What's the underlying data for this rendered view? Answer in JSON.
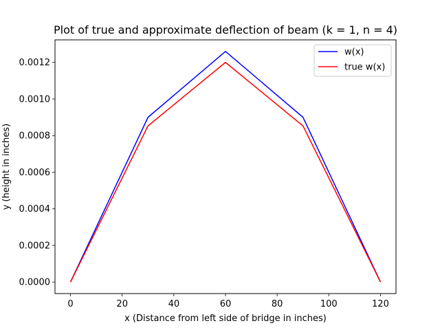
{
  "chart_data": {
    "type": "line",
    "title": "Plot of true and approximate deflection of beam (k = 1, n = 4)",
    "xlabel": "x (Distance from left side of bridge in inches)",
    "ylabel": "y (height in inches)",
    "xlim": [
      -6,
      126
    ],
    "ylim": [
      -6.3e-05,
      0.001323
    ],
    "xticks": [
      0,
      20,
      40,
      60,
      80,
      100,
      120
    ],
    "xtick_labels": [
      "0",
      "20",
      "40",
      "60",
      "80",
      "100",
      "120"
    ],
    "yticks": [
      0.0,
      0.0002,
      0.0004,
      0.0006,
      0.0008,
      0.001,
      0.0012
    ],
    "ytick_labels": [
      "0.0000",
      "0.0002",
      "0.0004",
      "0.0006",
      "0.0008",
      "0.0010",
      "0.0012"
    ],
    "grid": false,
    "legend_position": "top-right",
    "x": [
      0,
      30,
      60,
      90,
      120
    ],
    "series": [
      {
        "name": "w(x)",
        "color": "#0000ff",
        "values": [
          0.0,
          0.0009,
          0.00126,
          0.0009,
          0.0
        ]
      },
      {
        "name": "true w(x)",
        "color": "#ff0000",
        "values": [
          0.0,
          0.000853,
          0.0012,
          0.000853,
          0.0
        ]
      }
    ]
  }
}
